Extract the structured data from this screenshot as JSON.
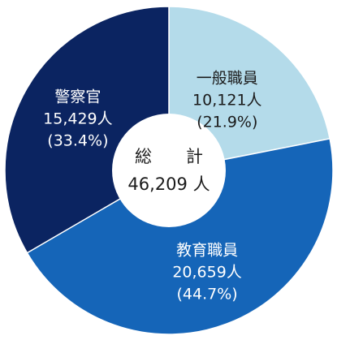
{
  "chart_data": {
    "type": "pie",
    "style": "donut",
    "center": {
      "title": "総　　計",
      "total": "46,209 人"
    },
    "slices": [
      {
        "name": "一般職員",
        "count_label": "10,121人",
        "percent_label": "(21.9%)",
        "value": 10121,
        "percent": 21.9,
        "color": "#b4dbea",
        "text_color": "#1a1a1a"
      },
      {
        "name": "教育職員",
        "count_label": "20,659人",
        "percent_label": "(44.7%)",
        "value": 20659,
        "percent": 44.7,
        "color": "#1565b8",
        "text_color": "#ffffff"
      },
      {
        "name": "警察官",
        "count_label": "15,429人",
        "percent_label": "(33.4%)",
        "value": 15429,
        "percent": 33.4,
        "color": "#0b2461",
        "text_color": "#ffffff"
      }
    ]
  }
}
